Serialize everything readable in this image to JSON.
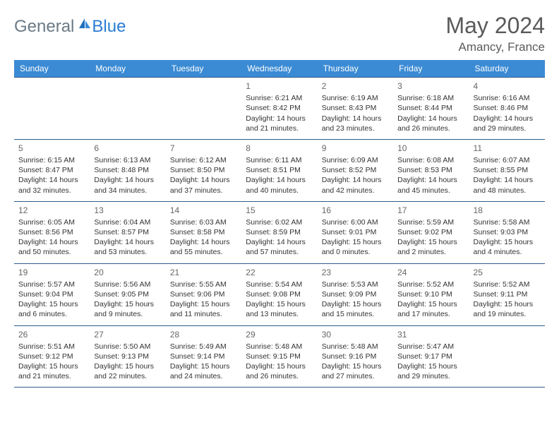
{
  "brand": {
    "part1": "General",
    "part2": "Blue"
  },
  "title": "May 2024",
  "location": "Amancy, France",
  "colors": {
    "header_bg": "#3b8bd4",
    "header_text": "#ffffff",
    "border": "#2f5d8a",
    "logo_gray": "#6b7a85",
    "logo_blue": "#2b7cd3",
    "title_color": "#5a5a5a",
    "body_text": "#333333",
    "background": "#ffffff"
  },
  "typography": {
    "title_fontsize": 32,
    "location_fontsize": 17,
    "dayheader_fontsize": 12,
    "daynum_fontsize": 12,
    "cell_fontsize": 10.5
  },
  "dayHeaders": [
    "Sunday",
    "Monday",
    "Tuesday",
    "Wednesday",
    "Thursday",
    "Friday",
    "Saturday"
  ],
  "weeks": [
    [
      null,
      null,
      null,
      {
        "n": "1",
        "sr": "Sunrise: 6:21 AM",
        "ss": "Sunset: 8:42 PM",
        "dl": "Daylight: 14 hours and 21 minutes."
      },
      {
        "n": "2",
        "sr": "Sunrise: 6:19 AM",
        "ss": "Sunset: 8:43 PM",
        "dl": "Daylight: 14 hours and 23 minutes."
      },
      {
        "n": "3",
        "sr": "Sunrise: 6:18 AM",
        "ss": "Sunset: 8:44 PM",
        "dl": "Daylight: 14 hours and 26 minutes."
      },
      {
        "n": "4",
        "sr": "Sunrise: 6:16 AM",
        "ss": "Sunset: 8:46 PM",
        "dl": "Daylight: 14 hours and 29 minutes."
      }
    ],
    [
      {
        "n": "5",
        "sr": "Sunrise: 6:15 AM",
        "ss": "Sunset: 8:47 PM",
        "dl": "Daylight: 14 hours and 32 minutes."
      },
      {
        "n": "6",
        "sr": "Sunrise: 6:13 AM",
        "ss": "Sunset: 8:48 PM",
        "dl": "Daylight: 14 hours and 34 minutes."
      },
      {
        "n": "7",
        "sr": "Sunrise: 6:12 AM",
        "ss": "Sunset: 8:50 PM",
        "dl": "Daylight: 14 hours and 37 minutes."
      },
      {
        "n": "8",
        "sr": "Sunrise: 6:11 AM",
        "ss": "Sunset: 8:51 PM",
        "dl": "Daylight: 14 hours and 40 minutes."
      },
      {
        "n": "9",
        "sr": "Sunrise: 6:09 AM",
        "ss": "Sunset: 8:52 PM",
        "dl": "Daylight: 14 hours and 42 minutes."
      },
      {
        "n": "10",
        "sr": "Sunrise: 6:08 AM",
        "ss": "Sunset: 8:53 PM",
        "dl": "Daylight: 14 hours and 45 minutes."
      },
      {
        "n": "11",
        "sr": "Sunrise: 6:07 AM",
        "ss": "Sunset: 8:55 PM",
        "dl": "Daylight: 14 hours and 48 minutes."
      }
    ],
    [
      {
        "n": "12",
        "sr": "Sunrise: 6:05 AM",
        "ss": "Sunset: 8:56 PM",
        "dl": "Daylight: 14 hours and 50 minutes."
      },
      {
        "n": "13",
        "sr": "Sunrise: 6:04 AM",
        "ss": "Sunset: 8:57 PM",
        "dl": "Daylight: 14 hours and 53 minutes."
      },
      {
        "n": "14",
        "sr": "Sunrise: 6:03 AM",
        "ss": "Sunset: 8:58 PM",
        "dl": "Daylight: 14 hours and 55 minutes."
      },
      {
        "n": "15",
        "sr": "Sunrise: 6:02 AM",
        "ss": "Sunset: 8:59 PM",
        "dl": "Daylight: 14 hours and 57 minutes."
      },
      {
        "n": "16",
        "sr": "Sunrise: 6:00 AM",
        "ss": "Sunset: 9:01 PM",
        "dl": "Daylight: 15 hours and 0 minutes."
      },
      {
        "n": "17",
        "sr": "Sunrise: 5:59 AM",
        "ss": "Sunset: 9:02 PM",
        "dl": "Daylight: 15 hours and 2 minutes."
      },
      {
        "n": "18",
        "sr": "Sunrise: 5:58 AM",
        "ss": "Sunset: 9:03 PM",
        "dl": "Daylight: 15 hours and 4 minutes."
      }
    ],
    [
      {
        "n": "19",
        "sr": "Sunrise: 5:57 AM",
        "ss": "Sunset: 9:04 PM",
        "dl": "Daylight: 15 hours and 6 minutes."
      },
      {
        "n": "20",
        "sr": "Sunrise: 5:56 AM",
        "ss": "Sunset: 9:05 PM",
        "dl": "Daylight: 15 hours and 9 minutes."
      },
      {
        "n": "21",
        "sr": "Sunrise: 5:55 AM",
        "ss": "Sunset: 9:06 PM",
        "dl": "Daylight: 15 hours and 11 minutes."
      },
      {
        "n": "22",
        "sr": "Sunrise: 5:54 AM",
        "ss": "Sunset: 9:08 PM",
        "dl": "Daylight: 15 hours and 13 minutes."
      },
      {
        "n": "23",
        "sr": "Sunrise: 5:53 AM",
        "ss": "Sunset: 9:09 PM",
        "dl": "Daylight: 15 hours and 15 minutes."
      },
      {
        "n": "24",
        "sr": "Sunrise: 5:52 AM",
        "ss": "Sunset: 9:10 PM",
        "dl": "Daylight: 15 hours and 17 minutes."
      },
      {
        "n": "25",
        "sr": "Sunrise: 5:52 AM",
        "ss": "Sunset: 9:11 PM",
        "dl": "Daylight: 15 hours and 19 minutes."
      }
    ],
    [
      {
        "n": "26",
        "sr": "Sunrise: 5:51 AM",
        "ss": "Sunset: 9:12 PM",
        "dl": "Daylight: 15 hours and 21 minutes."
      },
      {
        "n": "27",
        "sr": "Sunrise: 5:50 AM",
        "ss": "Sunset: 9:13 PM",
        "dl": "Daylight: 15 hours and 22 minutes."
      },
      {
        "n": "28",
        "sr": "Sunrise: 5:49 AM",
        "ss": "Sunset: 9:14 PM",
        "dl": "Daylight: 15 hours and 24 minutes."
      },
      {
        "n": "29",
        "sr": "Sunrise: 5:48 AM",
        "ss": "Sunset: 9:15 PM",
        "dl": "Daylight: 15 hours and 26 minutes."
      },
      {
        "n": "30",
        "sr": "Sunrise: 5:48 AM",
        "ss": "Sunset: 9:16 PM",
        "dl": "Daylight: 15 hours and 27 minutes."
      },
      {
        "n": "31",
        "sr": "Sunrise: 5:47 AM",
        "ss": "Sunset: 9:17 PM",
        "dl": "Daylight: 15 hours and 29 minutes."
      },
      null
    ]
  ]
}
